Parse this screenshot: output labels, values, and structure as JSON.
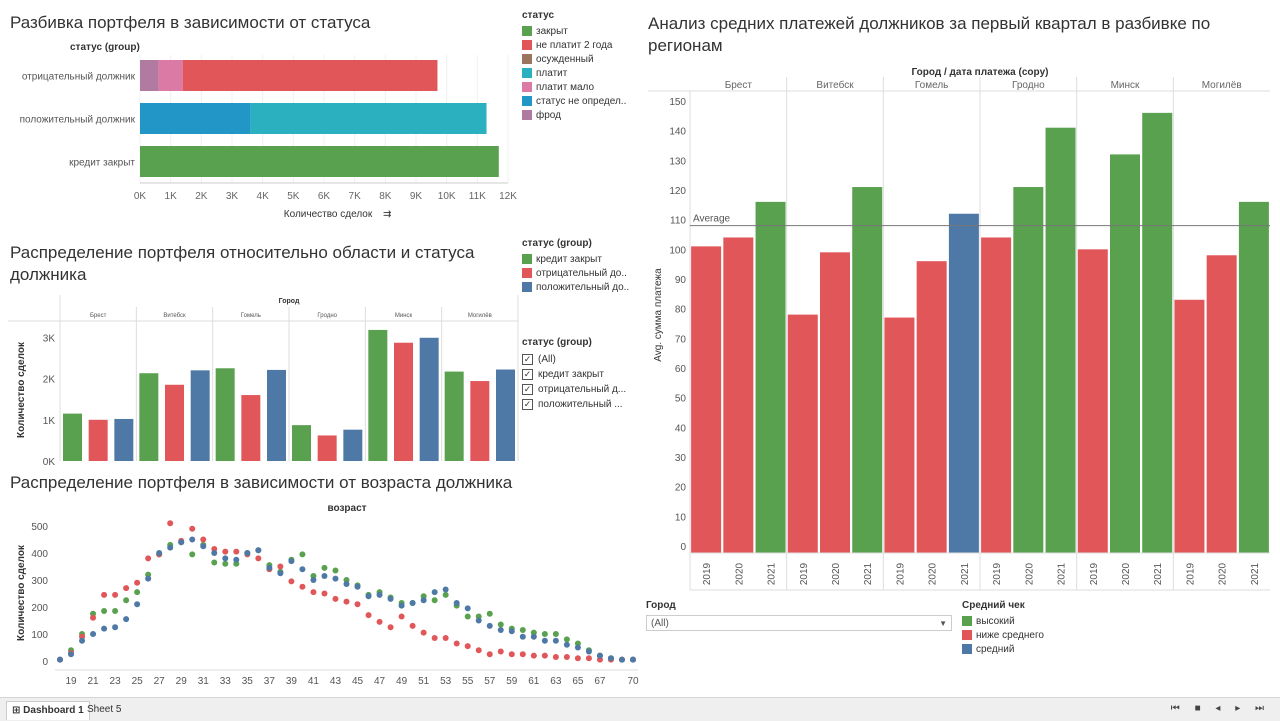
{
  "tabs": {
    "active": "Dashboard 1",
    "other": "Sheet 5"
  },
  "nav_icons": "⏮ ■ ◂ ▸ ⏭",
  "colors": {
    "green": "#59a14f",
    "red": "#e15759",
    "blue": "#4e79a7",
    "brown": "#9c755f",
    "teal": "#2bb0c0",
    "pink": "#da7aa5",
    "teal_dark": "#2196c7",
    "purple": "#b07aa1"
  },
  "chart1": {
    "title": "Разбивка портфеля в зависимости от статуса",
    "row_header": "статус (group)",
    "xlabel": "Количество сделок",
    "sort_icon": "⇉"
  },
  "legend1": {
    "title": "статус",
    "items": [
      {
        "label": "закрыт",
        "color": "#59a14f"
      },
      {
        "label": "не платит 2 года",
        "color": "#e15759"
      },
      {
        "label": "осужденный",
        "color": "#9c755f"
      },
      {
        "label": "платит",
        "color": "#2bb0c0"
      },
      {
        "label": "платит мало",
        "color": "#da7aa5"
      },
      {
        "label": "статус не определ..",
        "color": "#2196c7"
      },
      {
        "label": "фрод",
        "color": "#b07aa1"
      }
    ]
  },
  "chart2": {
    "title": "Распределение портфеля относительно области и статуса должника",
    "header": "Город",
    "ylabel": "Количество сделок"
  },
  "legend2": {
    "title": "статус (group)",
    "items": [
      {
        "label": "кредит закрыт",
        "color": "#59a14f"
      },
      {
        "label": "отрицательный до..",
        "color": "#e15759"
      },
      {
        "label": "положительный до..",
        "color": "#4e79a7"
      }
    ]
  },
  "filter2": {
    "title": "статус (group)",
    "items": [
      "(All)",
      "кредит закрыт",
      "отрицательный д...",
      "положительный ..."
    ]
  },
  "chart3": {
    "title": "Распределение портфеля в зависимости от возраста должника",
    "header": "возраст",
    "ylabel": "Количество сделок"
  },
  "chart4": {
    "title": "Анализ средних платежей должников за первый квартал в разбивке по регионам",
    "header": "Город / дата платежа (copy)",
    "ylabel": "Avg. сумма платежа",
    "ref_label": "Average"
  },
  "filter4": {
    "label": "Город",
    "value": "(All)"
  },
  "legend4": {
    "title": "Средний чек",
    "items": [
      {
        "label": "высокий",
        "color": "#59a14f"
      },
      {
        "label": "ниже среднего",
        "color": "#e15759"
      },
      {
        "label": "средний",
        "color": "#4e79a7"
      }
    ]
  },
  "chart_data": [
    {
      "type": "bar",
      "orientation": "horizontal",
      "stacked": true,
      "categories": [
        "отрицательный должник",
        "положительный должник",
        "кредит закрыт"
      ],
      "series": [
        {
          "name": "фрод",
          "color": "#b07aa1",
          "values": [
            600,
            0,
            0
          ]
        },
        {
          "name": "платит мало",
          "color": "#da7aa5",
          "values": [
            800,
            0,
            0
          ]
        },
        {
          "name": "не платит 2 года",
          "color": "#e15759",
          "values": [
            8300,
            0,
            0
          ]
        },
        {
          "name": "статус не определ..",
          "color": "#2196c7",
          "values": [
            0,
            3600,
            0
          ]
        },
        {
          "name": "платит",
          "color": "#2bb0c0",
          "values": [
            0,
            7700,
            0
          ]
        },
        {
          "name": "закрыт",
          "color": "#59a14f",
          "values": [
            0,
            0,
            11700
          ]
        }
      ],
      "xlim": [
        0,
        12000
      ],
      "ticks": [
        "0K",
        "1K",
        "2K",
        "3K",
        "4K",
        "5K",
        "6K",
        "7K",
        "8K",
        "9K",
        "10K",
        "11K",
        "12K"
      ],
      "xlabel": "Количество сделок",
      "row_header": "статус (group)",
      "title": "Разбивка портфеля в зависимости от статуса"
    },
    {
      "type": "bar",
      "groups": [
        "Брест",
        "Витебск",
        "Гомель",
        "Гродно",
        "Минск",
        "Могилёв"
      ],
      "series": [
        {
          "name": "кредит закрыт",
          "color": "#59a14f",
          "values": [
            1150,
            2130,
            2250,
            870,
            3180,
            2170
          ]
        },
        {
          "name": "отрицательный до..",
          "color": "#e15759",
          "values": [
            1000,
            1850,
            1600,
            620,
            2870,
            1940
          ]
        },
        {
          "name": "положительный до..",
          "color": "#4e79a7",
          "values": [
            1020,
            2200,
            2210,
            760,
            2990,
            2220
          ]
        }
      ],
      "ylim": [
        0,
        3300
      ],
      "ticks": [
        "0K",
        "1K",
        "2K",
        "3K"
      ],
      "ylabel": "Количество сделок",
      "header": "Город",
      "title": "Распределение портфеля относительно области и статуса должника"
    },
    {
      "type": "scatter",
      "x": [
        18,
        19,
        20,
        21,
        22,
        23,
        24,
        25,
        26,
        27,
        28,
        29,
        30,
        31,
        32,
        33,
        34,
        35,
        36,
        37,
        38,
        39,
        40,
        41,
        42,
        43,
        44,
        45,
        46,
        47,
        48,
        49,
        50,
        51,
        52,
        53,
        54,
        55,
        56,
        57,
        58,
        59,
        60,
        61,
        62,
        63,
        64,
        65,
        66,
        67,
        68,
        69,
        70
      ],
      "series": [
        {
          "name": "кредит закрыт",
          "color": "#59a14f",
          "values": [
            5,
            40,
            100,
            175,
            185,
            185,
            225,
            255,
            320,
            395,
            430,
            440,
            395,
            430,
            365,
            360,
            360,
            400,
            410,
            355,
            330,
            375,
            395,
            315,
            345,
            335,
            300,
            280,
            245,
            255,
            235,
            215,
            215,
            240,
            225,
            245,
            205,
            165,
            165,
            175,
            135,
            120,
            115,
            105,
            100,
            100,
            80,
            65,
            40,
            20,
            10,
            5,
            5
          ]
        },
        {
          "name": "отрицательный до..",
          "color": "#e15759",
          "values": [
            5,
            30,
            90,
            160,
            245,
            245,
            270,
            290,
            380,
            395,
            510,
            445,
            490,
            450,
            415,
            405,
            405,
            395,
            380,
            340,
            350,
            295,
            275,
            255,
            250,
            230,
            220,
            210,
            170,
            145,
            125,
            165,
            130,
            105,
            85,
            85,
            65,
            55,
            40,
            25,
            35,
            25,
            25,
            20,
            20,
            15,
            15,
            10,
            10,
            5,
            5,
            5,
            5
          ]
        },
        {
          "name": "положительный до..",
          "color": "#4e79a7",
          "values": [
            5,
            25,
            75,
            100,
            120,
            125,
            155,
            210,
            305,
            400,
            420,
            440,
            450,
            425,
            400,
            380,
            375,
            400,
            410,
            345,
            325,
            370,
            340,
            300,
            315,
            305,
            285,
            275,
            240,
            245,
            230,
            205,
            215,
            225,
            255,
            265,
            215,
            195,
            150,
            130,
            115,
            110,
            90,
            90,
            75,
            75,
            60,
            50,
            35,
            20,
            10,
            5,
            5
          ]
        }
      ],
      "ylim": [
        0,
        520
      ],
      "yticks": [
        0,
        100,
        200,
        300,
        400,
        500
      ],
      "xticks": [
        19,
        21,
        23,
        25,
        27,
        29,
        31,
        33,
        35,
        37,
        39,
        41,
        43,
        45,
        47,
        49,
        51,
        53,
        55,
        57,
        59,
        61,
        63,
        65,
        67,
        70
      ],
      "ylabel": "Количество сделок",
      "header": "возраст",
      "title": "Распределение портфеля в зависимости от возраста должника"
    },
    {
      "type": "bar",
      "groups": [
        "Брест",
        "Витебск",
        "Гомель",
        "Гродно",
        "Минск",
        "Могилёв"
      ],
      "years": [
        "2019",
        "2020",
        "2021"
      ],
      "values": [
        [
          101,
          104,
          116
        ],
        [
          78,
          99,
          121
        ],
        [
          77,
          96,
          112
        ],
        [
          104,
          121,
          141
        ],
        [
          100,
          132,
          146
        ],
        [
          83,
          98,
          116
        ]
      ],
      "bar_colors": [
        [
          "#e15759",
          "#e15759",
          "#59a14f"
        ],
        [
          "#e15759",
          "#e15759",
          "#59a14f"
        ],
        [
          "#e15759",
          "#e15759",
          "#4e79a7"
        ],
        [
          "#e15759",
          "#59a14f",
          "#59a14f"
        ],
        [
          "#e15759",
          "#59a14f",
          "#59a14f"
        ],
        [
          "#e15759",
          "#e15759",
          "#59a14f"
        ]
      ],
      "reference_line": {
        "label": "Average",
        "value": 108
      },
      "ylim": [
        0,
        152
      ],
      "yticks": [
        0,
        10,
        20,
        30,
        40,
        50,
        60,
        70,
        80,
        90,
        100,
        110,
        120,
        130,
        140,
        150
      ],
      "ylabel": "Avg. сумма платежа",
      "header": "Город / дата платежа (copy)",
      "title": "Анализ средних платежей должников за первый квартал в разбивке по регионам"
    }
  ]
}
